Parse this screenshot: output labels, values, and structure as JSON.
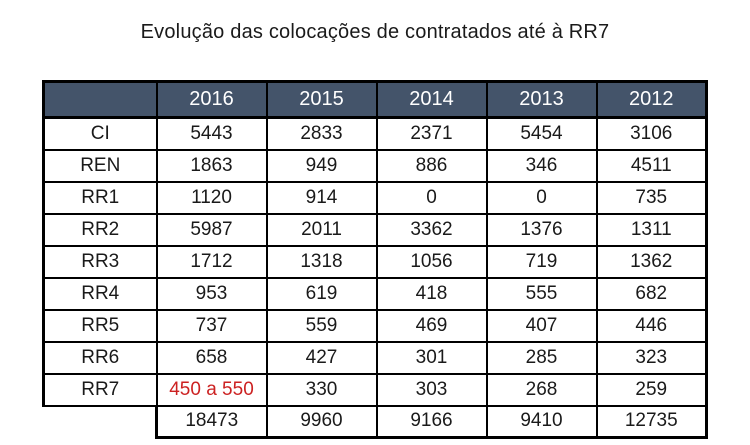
{
  "title": "Evolução das colocações de contratados até à RR7",
  "table": {
    "corner_label": "",
    "years": [
      "2016",
      "2015",
      "2014",
      "2013",
      "2012"
    ],
    "rows": [
      {
        "label": "CI",
        "values": [
          "5443",
          "2833",
          "2371",
          "5454",
          "3106"
        ]
      },
      {
        "label": "REN",
        "values": [
          "1863",
          "949",
          "886",
          "346",
          "4511"
        ]
      },
      {
        "label": "RR1",
        "values": [
          "1120",
          "914",
          "0",
          "0",
          "735"
        ]
      },
      {
        "label": "RR2",
        "values": [
          "5987",
          "2011",
          "3362",
          "1376",
          "1311"
        ]
      },
      {
        "label": "RR3",
        "values": [
          "1712",
          "1318",
          "1056",
          "719",
          "1362"
        ]
      },
      {
        "label": "RR4",
        "values": [
          "953",
          "619",
          "418",
          "555",
          "682"
        ]
      },
      {
        "label": "RR5",
        "values": [
          "737",
          "559",
          "469",
          "407",
          "446"
        ]
      },
      {
        "label": "RR6",
        "values": [
          "658",
          "427",
          "301",
          "285",
          "323"
        ]
      },
      {
        "label": "RR7",
        "values": [
          "450 a 550",
          "330",
          "303",
          "268",
          "259"
        ],
        "red_cols": [
          0
        ]
      }
    ],
    "totals": [
      "18473",
      "9960",
      "9166",
      "9410",
      "12735"
    ]
  },
  "colors": {
    "header_bg": "#44546A",
    "header_text": "#FFFFFF",
    "highlight_text": "#CC2222",
    "border": "#000000",
    "cell_bg": "#FFFFFF"
  },
  "chart_data": {
    "type": "table",
    "title": "Evolução das colocações de contratados até à RR7",
    "columns": [
      "",
      "2016",
      "2015",
      "2014",
      "2013",
      "2012"
    ],
    "rows": [
      [
        "CI",
        5443,
        2833,
        2371,
        5454,
        3106
      ],
      [
        "REN",
        1863,
        949,
        886,
        346,
        4511
      ],
      [
        "RR1",
        1120,
        914,
        0,
        0,
        735
      ],
      [
        "RR2",
        5987,
        2011,
        3362,
        1376,
        1311
      ],
      [
        "RR3",
        1712,
        1318,
        1056,
        719,
        1362
      ],
      [
        "RR4",
        953,
        619,
        418,
        555,
        682
      ],
      [
        "RR5",
        737,
        559,
        469,
        407,
        446
      ],
      [
        "RR6",
        658,
        427,
        301,
        285,
        323
      ],
      [
        "RR7",
        "450 a 550",
        330,
        303,
        268,
        259
      ],
      [
        "",
        18473,
        9960,
        9166,
        9410,
        12735
      ]
    ],
    "annotations": [
      "RR7 / 2016 value shown in red as range 450 a 550",
      "Last row contains column totals with no row label"
    ]
  }
}
